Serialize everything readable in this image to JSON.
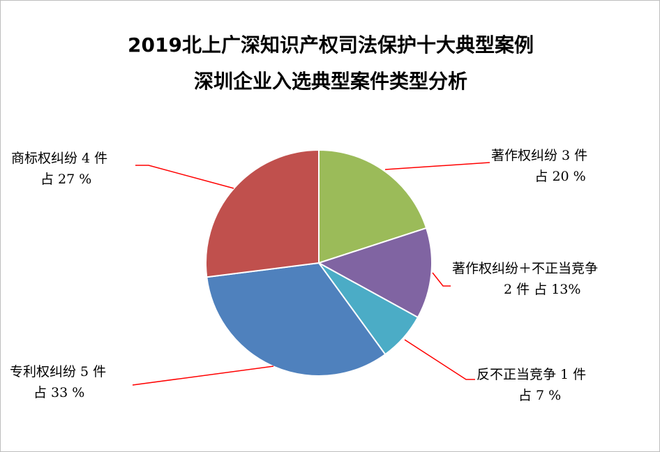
{
  "chart_data": {
    "type": "pie",
    "title": "2019北上广深知识产权司法保护十大典型案例",
    "subtitle": "深圳企业入选典型案件类型分析",
    "slices": [
      {
        "category": "著作权纠纷",
        "count": 3,
        "count_text": "著作权纠纷 3 件",
        "pct_text": "占 20 %",
        "value": 20,
        "color": "#9BBB59"
      },
      {
        "category": "著作权纠纷＋不正当竞争",
        "count": 2,
        "count_text": "著作权纠纷＋不正当竞争",
        "pct_text": "2 件  占 13%",
        "value": 13,
        "color": "#8064A2"
      },
      {
        "category": "反不正当竞争",
        "count": 1,
        "count_text": "反不正当竞争 1 件",
        "pct_text": "占 7 %",
        "value": 7,
        "color": "#4BACC6"
      },
      {
        "category": "专利权纠纷",
        "count": 5,
        "count_text": "专利权纠纷 5 件",
        "pct_text": "占 33 %",
        "value": 33,
        "color": "#4F81BD"
      },
      {
        "category": "商标权纠纷",
        "count": 4,
        "count_text": "商标权纠纷 4 件",
        "pct_text": "占 27 %",
        "value": 27,
        "color": "#C0504D"
      }
    ],
    "leader_color": "#FF0000"
  }
}
